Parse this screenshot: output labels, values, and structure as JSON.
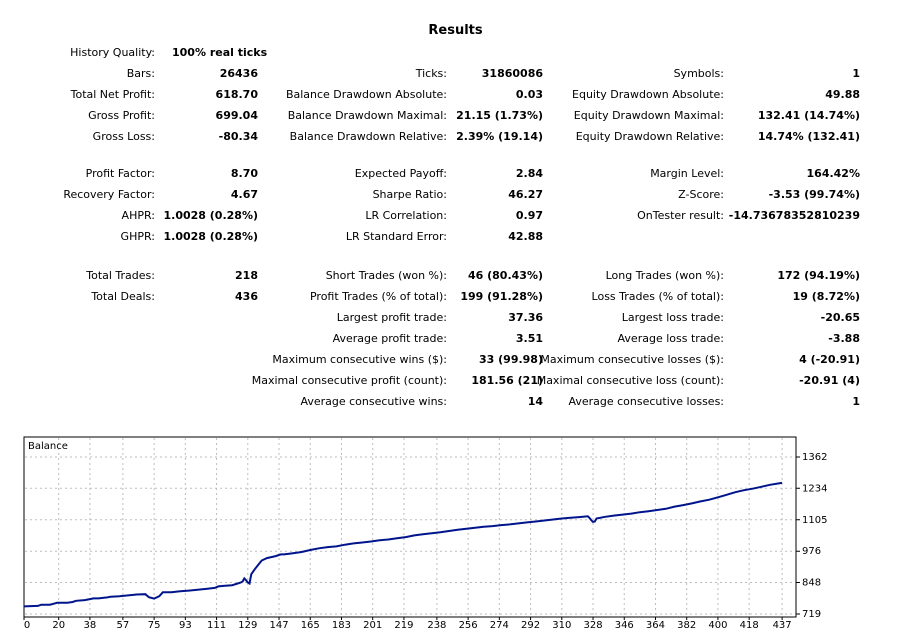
{
  "title": "Results",
  "history_quality": {
    "label": "History Quality:",
    "value": "100% real ticks"
  },
  "stats": [
    [
      {
        "label": "Bars:",
        "value": "26436"
      },
      {
        "label": "Total Net Profit:",
        "value": "618.70"
      },
      {
        "label": "Gross Profit:",
        "value": "699.04"
      },
      {
        "label": "Gross Loss:",
        "value": "-80.34"
      },
      null,
      {
        "label": "Profit Factor:",
        "value": "8.70"
      },
      {
        "label": "Recovery Factor:",
        "value": "4.67"
      },
      {
        "label": "AHPR:",
        "value": "1.0028 (0.28%)"
      },
      {
        "label": "GHPR:",
        "value": "1.0028 (0.28%)"
      },
      null,
      {
        "label": "Total Trades:",
        "value": "218"
      },
      {
        "label": "Total Deals:",
        "value": "436"
      }
    ],
    [
      {
        "label": "Ticks:",
        "value": "31860086"
      },
      {
        "label": "Balance Drawdown Absolute:",
        "value": "0.03"
      },
      {
        "label": "Balance Drawdown Maximal:",
        "value": "21.15 (1.73%)"
      },
      {
        "label": "Balance Drawdown Relative:",
        "value": "2.39% (19.14)"
      },
      null,
      {
        "label": "Expected Payoff:",
        "value": "2.84"
      },
      {
        "label": "Sharpe Ratio:",
        "value": "46.27"
      },
      {
        "label": "LR Correlation:",
        "value": "0.97"
      },
      {
        "label": "LR Standard Error:",
        "value": "42.88"
      },
      null,
      {
        "label": "Short Trades (won %):",
        "value": "46 (80.43%)"
      },
      {
        "label": "Profit Trades (% of total):",
        "value": "199 (91.28%)"
      },
      {
        "label": "Largest profit trade:",
        "value": "37.36"
      },
      {
        "label": "Average profit trade:",
        "value": "3.51"
      },
      {
        "label": "Maximum consecutive wins ($):",
        "value": "33 (99.98)"
      },
      {
        "label": "Maximal consecutive profit (count):",
        "value": "181.56 (21)"
      },
      {
        "label": "Average consecutive wins:",
        "value": "14"
      }
    ],
    [
      {
        "label": "Symbols:",
        "value": "1"
      },
      {
        "label": "Equity Drawdown Absolute:",
        "value": "49.88"
      },
      {
        "label": "Equity Drawdown Maximal:",
        "value": "132.41 (14.74%)"
      },
      {
        "label": "Equity Drawdown Relative:",
        "value": "14.74% (132.41)"
      },
      null,
      {
        "label": "Margin Level:",
        "value": "164.42%"
      },
      {
        "label": "Z-Score:",
        "value": "-3.53 (99.74%)"
      },
      {
        "label": "OnTester result:",
        "value": "-14.73678352810239"
      },
      null,
      null,
      {
        "label": "Long Trades (won %):",
        "value": "172 (94.19%)"
      },
      {
        "label": "Loss Trades (% of total):",
        "value": "19 (8.72%)"
      },
      {
        "label": "Largest loss trade:",
        "value": "-20.65"
      },
      {
        "label": "Average loss trade:",
        "value": "-3.88"
      },
      {
        "label": "Maximum consecutive losses ($):",
        "value": "4 (-20.91)"
      },
      {
        "label": "Maximal consecutive loss (count):",
        "value": "-20.91 (4)"
      },
      {
        "label": "Average consecutive losses:",
        "value": "1"
      }
    ]
  ],
  "chart_data": {
    "type": "line",
    "legend": "Balance",
    "x_ticks": [
      "0",
      "20",
      "38",
      "57",
      "75",
      "93",
      "111",
      "129",
      "147",
      "165",
      "183",
      "201",
      "219",
      "238",
      "256",
      "274",
      "292",
      "310",
      "328",
      "346",
      "364",
      "382",
      "400",
      "418",
      "437"
    ],
    "y_ticks": [
      "719",
      "848",
      "976",
      "1105",
      "1234",
      "1362"
    ],
    "xlim": [
      0,
      445
    ],
    "ylim": [
      719,
      1362
    ],
    "grid": true,
    "line_color": "#00148c",
    "series": [
      {
        "x": [
          0,
          8,
          10,
          15,
          18,
          19,
          25,
          28,
          30,
          35,
          38,
          40,
          43,
          48,
          50,
          55,
          60,
          65,
          70,
          72,
          75,
          78,
          80,
          85,
          90,
          95,
          100,
          105,
          110,
          112,
          115,
          120,
          125,
          126,
          127,
          128,
          129,
          130,
          131,
          133,
          135,
          137,
          140,
          145,
          148,
          150,
          155,
          160,
          165,
          170,
          175,
          180,
          185,
          190,
          195,
          200,
          205,
          210,
          215,
          220,
          225,
          230,
          235,
          240,
          245,
          250,
          255,
          260,
          265,
          270,
          275,
          280,
          285,
          290,
          295,
          300,
          305,
          310,
          315,
          320,
          325,
          326,
          327,
          328,
          329,
          330,
          335,
          340,
          345,
          350,
          355,
          360,
          365,
          370,
          375,
          380,
          385,
          390,
          395,
          400,
          405,
          410,
          415,
          420,
          425,
          430,
          435,
          437
        ],
        "y": [
          750,
          752,
          757,
          757,
          763,
          765,
          765,
          768,
          773,
          776,
          780,
          783,
          783,
          787,
          790,
          792,
          795,
          799,
          800,
          788,
          782,
          792,
          808,
          808,
          812,
          815,
          818,
          822,
          826,
          832,
          834,
          837,
          848,
          852,
          865,
          857,
          848,
          844,
          882,
          902,
          920,
          938,
          948,
          956,
          963,
          963,
          968,
          973,
          981,
          988,
          993,
          996,
          1003,
          1008,
          1012,
          1016,
          1021,
          1024,
          1029,
          1034,
          1041,
          1046,
          1050,
          1054,
          1059,
          1064,
          1068,
          1072,
          1076,
          1079,
          1083,
          1086,
          1090,
          1094,
          1098,
          1102,
          1106,
          1110,
          1113,
          1116,
          1119,
          1112,
          1103,
          1096,
          1098,
          1110,
          1117,
          1122,
          1126,
          1130,
          1136,
          1140,
          1145,
          1150,
          1159,
          1165,
          1172,
          1180,
          1187,
          1197,
          1207,
          1218,
          1226,
          1232,
          1240,
          1248,
          1254,
          1256
        ]
      }
    ]
  }
}
